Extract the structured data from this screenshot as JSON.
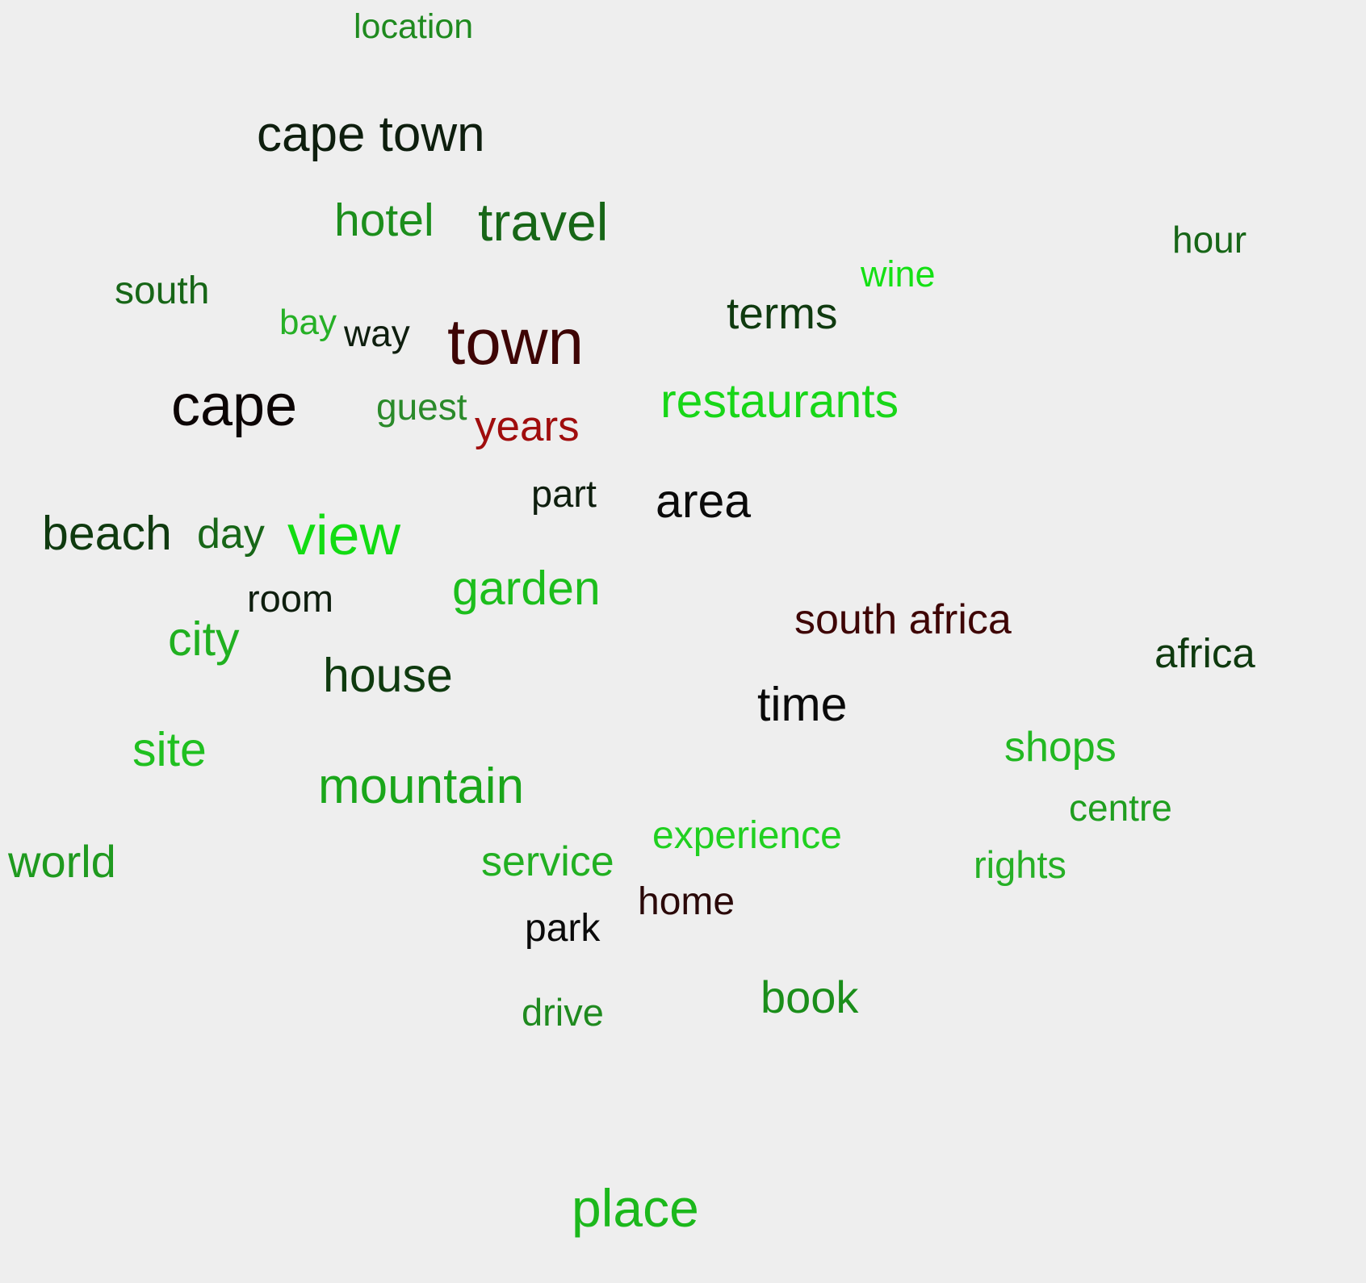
{
  "words": [
    {
      "text": "location",
      "color": "#1f8a1f",
      "weight": 2
    },
    {
      "text": "cape town",
      "color": "#0e1e0e",
      "weight": 5
    },
    {
      "text": "hotel",
      "color": "#1c8e1c",
      "weight": 4
    },
    {
      "text": "travel",
      "color": "#176617",
      "weight": 5
    },
    {
      "text": "hour",
      "color": "#176617",
      "weight": 2
    },
    {
      "text": "wine",
      "color": "#14e014",
      "weight": 2
    },
    {
      "text": "south",
      "color": "#176617",
      "weight": 2
    },
    {
      "text": "bay",
      "color": "#26b026",
      "weight": 2
    },
    {
      "text": "way",
      "color": "#0e1e0e",
      "weight": 2
    },
    {
      "text": "town",
      "color": "#3e0505",
      "weight": 6
    },
    {
      "text": "terms",
      "color": "#0f3a0f",
      "weight": 3
    },
    {
      "text": "cape",
      "color": "#0c0505",
      "weight": 6
    },
    {
      "text": "guest",
      "color": "#2a8a2a",
      "weight": 2
    },
    {
      "text": "years",
      "color": "#a00d0d",
      "weight": 3
    },
    {
      "text": "restaurants",
      "color": "#18d618",
      "weight": 4
    },
    {
      "text": "part",
      "color": "#0e1e0e",
      "weight": 2
    },
    {
      "text": "area",
      "color": "#0a0a0a",
      "weight": 4
    },
    {
      "text": "beach",
      "color": "#0f3a0f",
      "weight": 4
    },
    {
      "text": "day",
      "color": "#176617",
      "weight": 3
    },
    {
      "text": "view",
      "color": "#12dc12",
      "weight": 5
    },
    {
      "text": "room",
      "color": "#0e1e0e",
      "weight": 2
    },
    {
      "text": "garden",
      "color": "#1cbe1c",
      "weight": 4
    },
    {
      "text": "south africa",
      "color": "#3e0505",
      "weight": 3
    },
    {
      "text": "city",
      "color": "#20b020",
      "weight": 4
    },
    {
      "text": "africa",
      "color": "#0f3a0f",
      "weight": 3
    },
    {
      "text": "house",
      "color": "#0f3a0f",
      "weight": 4
    },
    {
      "text": "time",
      "color": "#0a0a0a",
      "weight": 4
    },
    {
      "text": "site",
      "color": "#20c020",
      "weight": 4
    },
    {
      "text": "shops",
      "color": "#22b822",
      "weight": 3
    },
    {
      "text": "mountain",
      "color": "#1aa61a",
      "weight": 4
    },
    {
      "text": "centre",
      "color": "#1f9e1f",
      "weight": 2
    },
    {
      "text": "experience",
      "color": "#20d020",
      "weight": 3
    },
    {
      "text": "world",
      "color": "#1f9a1f",
      "weight": 4
    },
    {
      "text": "service",
      "color": "#22b022",
      "weight": 3
    },
    {
      "text": "rights",
      "color": "#26b026",
      "weight": 2
    },
    {
      "text": "home",
      "color": "#2a0808",
      "weight": 2
    },
    {
      "text": "park",
      "color": "#0a0a0a",
      "weight": 2
    },
    {
      "text": "book",
      "color": "#1a8e1a",
      "weight": 4
    },
    {
      "text": "drive",
      "color": "#1f8a1f",
      "weight": 2
    },
    {
      "text": "place",
      "color": "#1cb81c",
      "weight": 5
    }
  ]
}
